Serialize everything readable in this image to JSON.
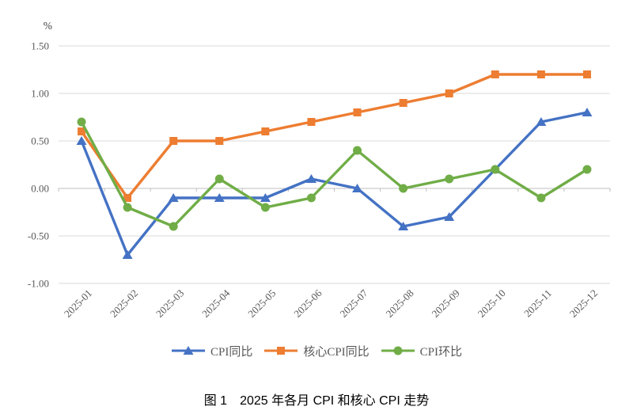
{
  "figure": {
    "caption": "图 1　2025 年各月 CPI 和核心 CPI 走势"
  },
  "chart_data": {
    "type": "line",
    "title": "",
    "xlabel": "",
    "ylabel": "%",
    "categories": [
      "2025-01",
      "2025-02",
      "2025-03",
      "2025-04",
      "2025-05",
      "2025-06",
      "2025-07",
      "2025-08",
      "2025-09",
      "2025-10",
      "2025-11",
      "2025-12"
    ],
    "series": [
      {
        "name": "CPI同比",
        "marker": "triangle",
        "color": "#4472C4",
        "values": [
          0.5,
          -0.7,
          -0.1,
          -0.1,
          -0.1,
          0.1,
          0.0,
          -0.4,
          -0.3,
          0.2,
          0.7,
          0.8
        ]
      },
      {
        "name": "核心CPI同比",
        "marker": "square",
        "color": "#ED7D31",
        "values": [
          0.6,
          -0.1,
          0.5,
          0.5,
          0.6,
          0.7,
          0.8,
          0.9,
          1.0,
          1.2,
          1.2,
          1.2
        ]
      },
      {
        "name": "CPI环比",
        "marker": "circle",
        "color": "#70AD47",
        "values": [
          0.7,
          -0.2,
          -0.4,
          0.1,
          -0.2,
          -0.1,
          0.4,
          0.0,
          0.1,
          0.2,
          -0.1,
          0.2
        ]
      }
    ],
    "ylim": [
      -1.0,
      1.5
    ],
    "ytick_labels": [
      "1.50",
      "1.00",
      "0.50",
      "0.00",
      "-0.50",
      "-1.00"
    ],
    "grid": true,
    "legend_position": "bottom",
    "colors": {
      "gridline": "#D9D9D9",
      "axis": "#BFBFBF",
      "tick_text": "#595959",
      "caption_text": "#000000"
    }
  }
}
